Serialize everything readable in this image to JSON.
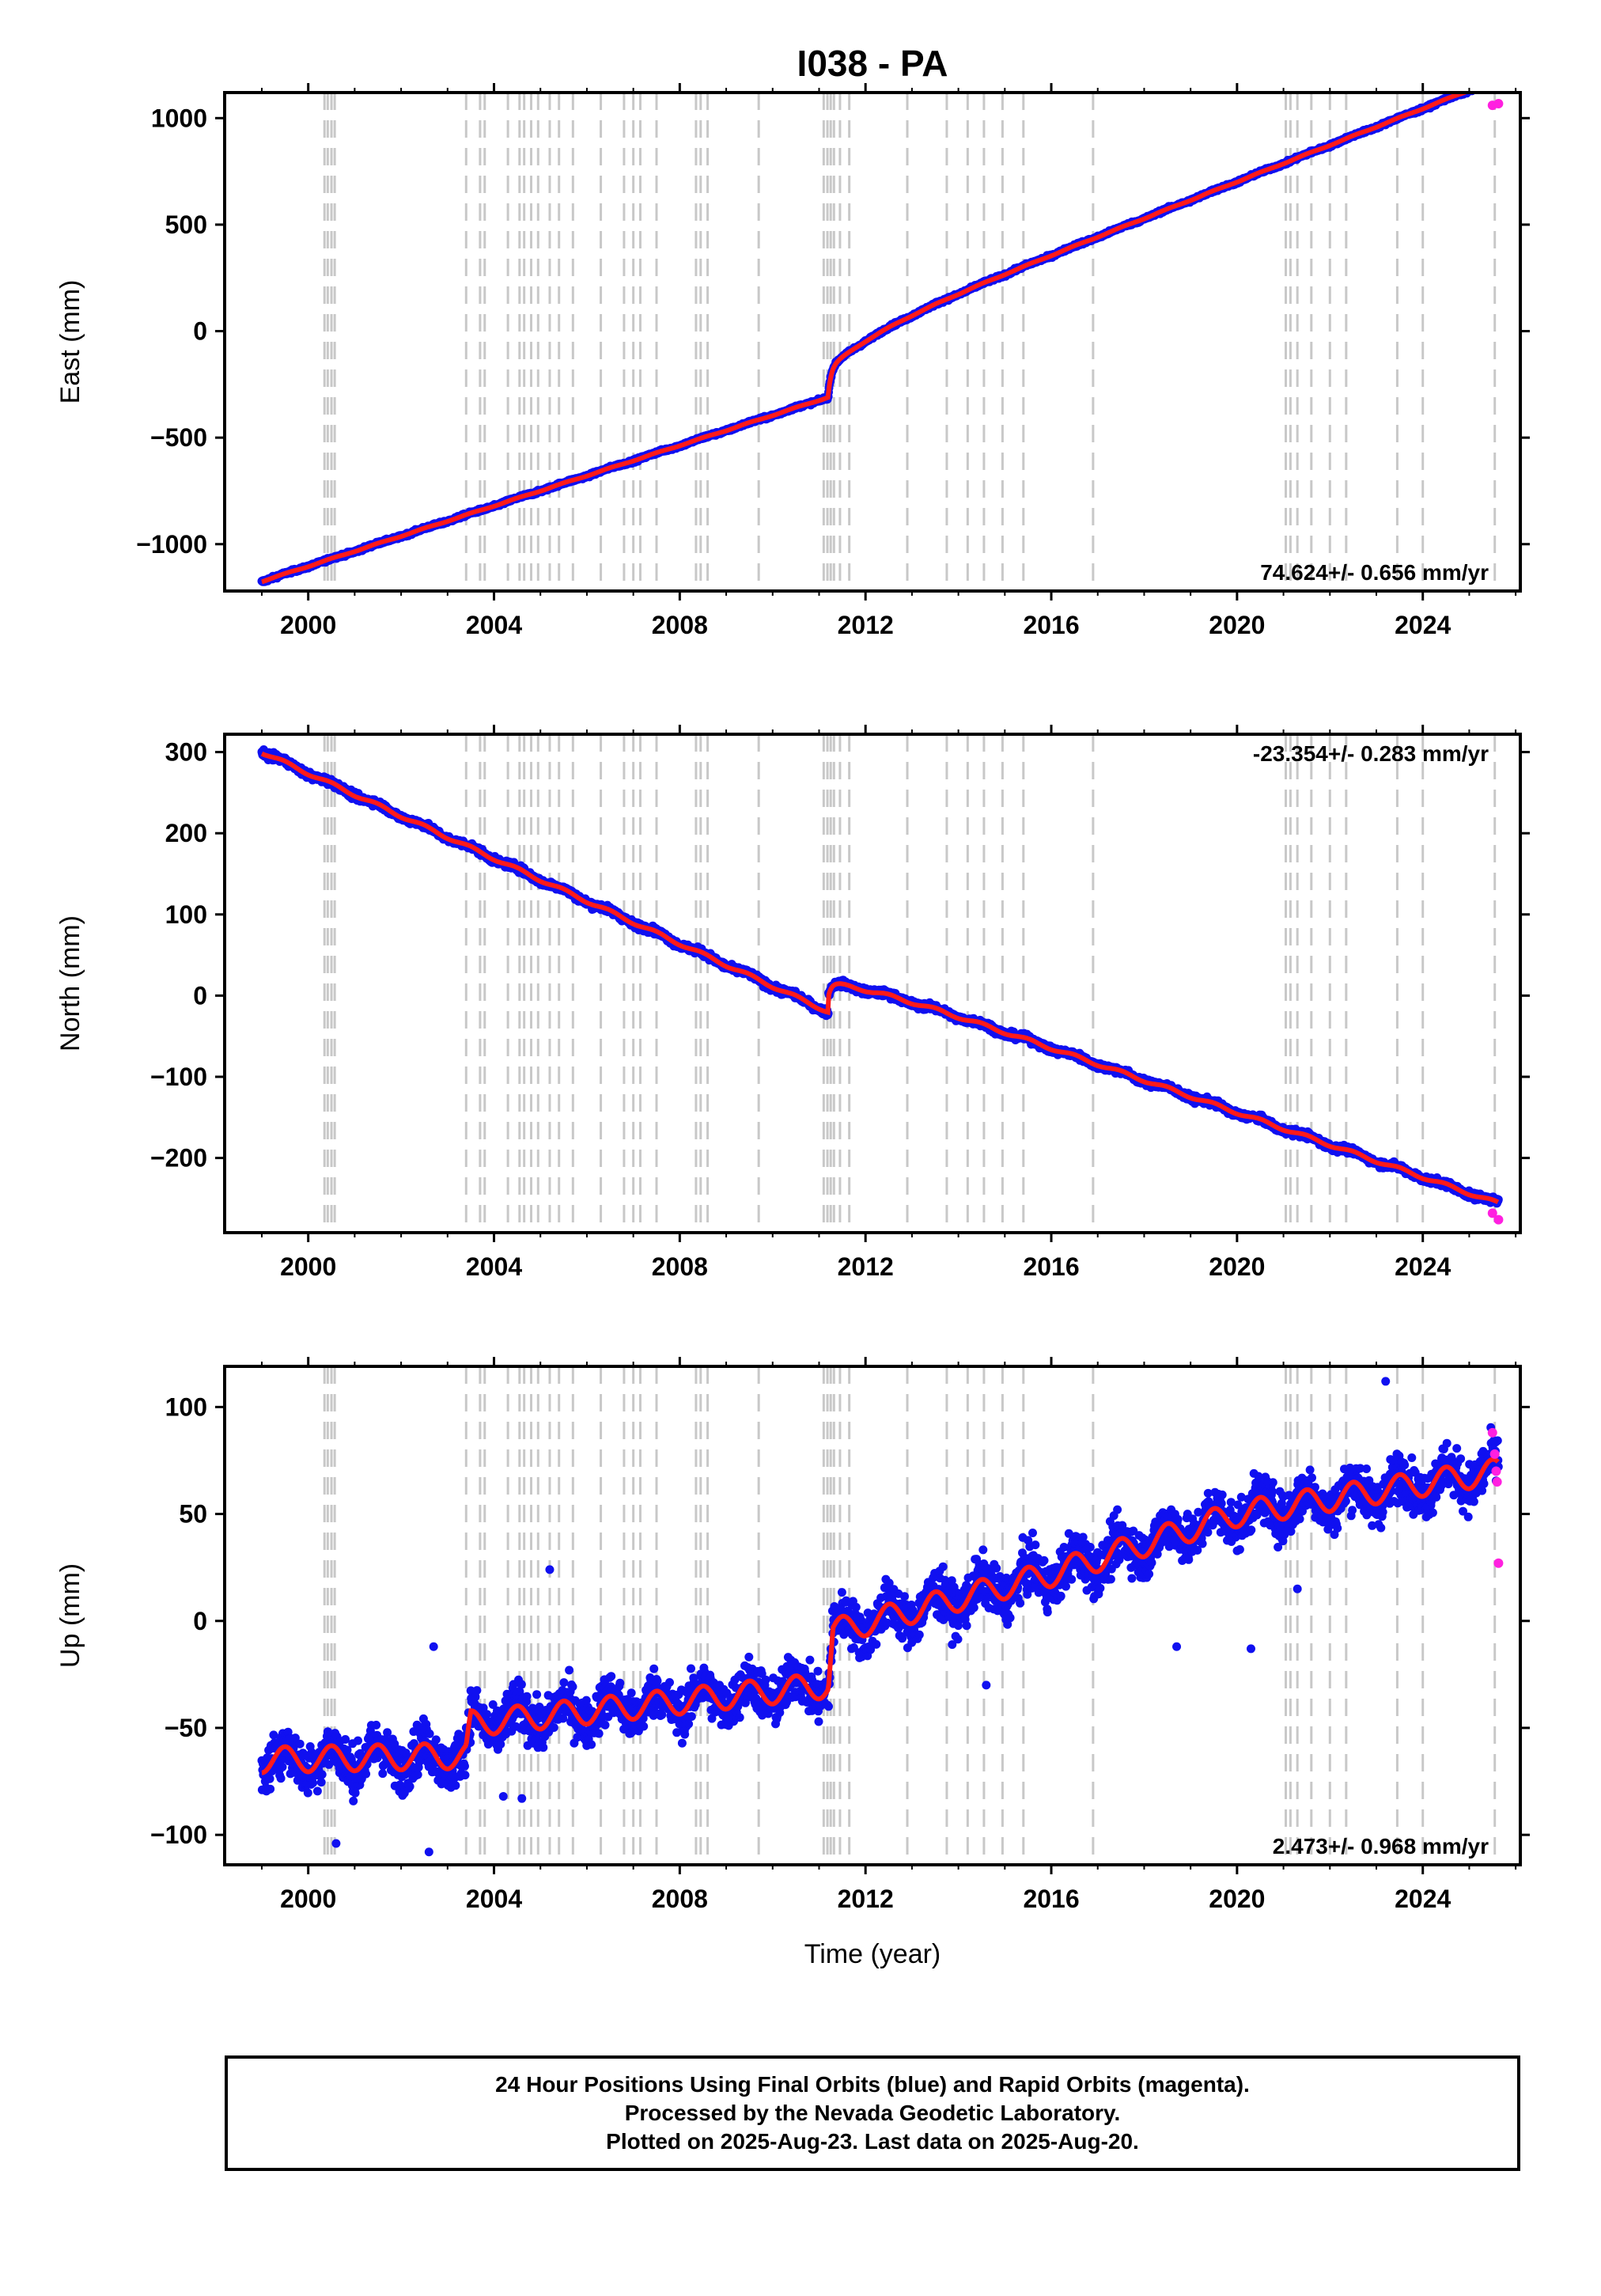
{
  "title": "I038 - PA",
  "colors": {
    "final": "#1010f0",
    "rapid": "#ff20e0",
    "model": "#ff1a1a",
    "event_line": "#c8c8c8"
  },
  "chart_data": [
    {
      "type": "scatter",
      "component": "east",
      "ylabel": "East (mm)",
      "ylim": [
        -1220,
        1120
      ],
      "yticks": [
        -1000,
        -500,
        0,
        500,
        1000
      ],
      "xlim": [
        1998.2,
        2026.1
      ],
      "xticks": [
        2000,
        2004,
        2008,
        2012,
        2016,
        2020,
        2024
      ],
      "rate_label": "74.624+/- 0.656 mm/yr",
      "rate_position": "bottom-right",
      "x_start": 1999.0,
      "x_end": 2025.63,
      "trend_before": {
        "x": [
          1999.0,
          2011.2
        ],
        "y": [
          -1175,
          -310
        ]
      },
      "trend_after": {
        "x": [
          2011.2,
          2025.63
        ],
        "y": [
          -175,
          1065
        ]
      },
      "offset_year": 2011.2,
      "postseismic_amp": 120,
      "seasonal_amp": 2,
      "noise": 5,
      "rapid_x": [
        2025.5,
        2025.63
      ],
      "rapid_y": [
        1060,
        1068
      ]
    },
    {
      "type": "scatter",
      "component": "north",
      "ylabel": "North (mm)",
      "ylim": [
        -292,
        322
      ],
      "yticks": [
        -200,
        -100,
        0,
        100,
        200,
        300
      ],
      "xlim": [
        1998.2,
        2026.1
      ],
      "xticks": [
        2000,
        2004,
        2008,
        2012,
        2016,
        2020,
        2024
      ],
      "rate_label": "-23.354+/- 0.283 mm/yr",
      "rate_position": "top-right",
      "x_start": 1999.0,
      "x_end": 2025.63,
      "trend_before": {
        "x": [
          1999.0,
          2011.2
        ],
        "y": [
          300,
          -20
        ]
      },
      "trend_after": {
        "x": [
          2011.2,
          2025.63
        ],
        "y": [
          15,
          -272
        ]
      },
      "offset_year": 2011.2,
      "postseismic_amp": 16,
      "seasonal_amp": 2,
      "noise": 3,
      "rapid_x": [
        2025.5,
        2025.63
      ],
      "rapid_y": [
        -268,
        -276
      ]
    },
    {
      "type": "scatter",
      "component": "up",
      "ylabel": "Up (mm)",
      "ylim": [
        -114,
        119
      ],
      "yticks": [
        -100,
        -50,
        0,
        50,
        100
      ],
      "xlim": [
        1998.2,
        2026.1
      ],
      "xticks": [
        2000,
        2004,
        2008,
        2012,
        2016,
        2020,
        2024
      ],
      "xlabel": "Time (year)",
      "rate_label": "2.473+/- 0.968 mm/yr",
      "rate_position": "bottom-right",
      "x_start": 1999.0,
      "x_end": 2025.63,
      "trend_x": [
        1999.0,
        2003.4,
        2003.5,
        2007.0,
        2011.2,
        2011.3,
        2016.0,
        2020.0,
        2025.63
      ],
      "trend_y": [
        -65,
        -63,
        -48,
        -40,
        -30,
        -5,
        22,
        50,
        70
      ],
      "seasonal_amp": 6,
      "noise": 8,
      "outliers": [
        [
          2000.6,
          -104
        ],
        [
          2002.6,
          -108
        ],
        [
          2004.2,
          -82
        ],
        [
          2004.6,
          -83
        ],
        [
          2005.2,
          24
        ],
        [
          2002.7,
          -12
        ],
        [
          2020.3,
          -13
        ],
        [
          2021.3,
          15
        ],
        [
          2014.6,
          -30
        ],
        [
          2018.7,
          -12
        ],
        [
          2023.2,
          112
        ]
      ],
      "rapid_x": [
        2025.5,
        2025.55,
        2025.58,
        2025.6,
        2025.63
      ],
      "rapid_y": [
        88,
        78,
        70,
        65,
        27
      ]
    }
  ],
  "event_lines": [
    2000.35,
    2000.42,
    2000.5,
    2000.57,
    2003.4,
    2003.7,
    2003.8,
    2004.3,
    2004.55,
    2004.65,
    2004.8,
    2004.95,
    2005.2,
    2005.4,
    2005.7,
    2006.3,
    2006.8,
    2007.0,
    2007.15,
    2007.5,
    2008.35,
    2008.45,
    2008.6,
    2009.7,
    2011.1,
    2011.18,
    2011.25,
    2011.32,
    2011.45,
    2011.65,
    2012.9,
    2013.75,
    2014.2,
    2014.55,
    2014.95,
    2015.4,
    2016.9,
    2021.05,
    2021.15,
    2021.3,
    2021.6,
    2022.0,
    2022.35,
    2023.45,
    2024.0,
    2025.55
  ],
  "footer": {
    "line1": "24 Hour Positions Using Final Orbits (blue) and Rapid Orbits (magenta).",
    "line2": "Processed by the Nevada Geodetic Laboratory.",
    "line3": "Plotted on 2025-Aug-23. Last data on 2025-Aug-20."
  }
}
